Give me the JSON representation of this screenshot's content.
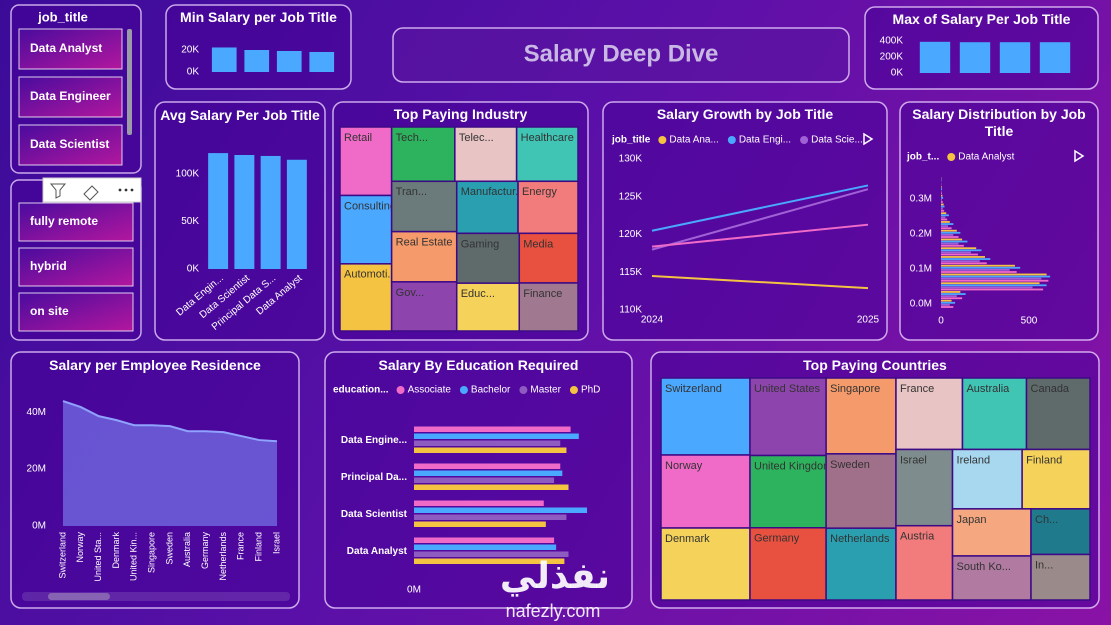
{
  "header": {
    "title": "Salary Deep Dive"
  },
  "slicers": [
    {
      "title": "job_title",
      "items": [
        "Data Analyst",
        "Data Engineer",
        "Data Scientist"
      ]
    },
    {
      "items": [
        "fully remote",
        "hybrid",
        "on site"
      ]
    }
  ],
  "watermark": {
    "arabic": "نفذلي",
    "latin": "nafezly.com"
  },
  "chart_data": [
    {
      "type": "bar",
      "title": "Min Salary per Job Title",
      "values": [
        22300,
        20000,
        19100,
        18200
      ],
      "color": "#4aa8ff",
      "ylim": [
        0,
        25000
      ],
      "yticks": [
        {
          "value": 0,
          "label": "0K"
        },
        {
          "value": 20000,
          "label": "20K"
        }
      ]
    },
    {
      "type": "bar",
      "title": "Max of Salary Per Job Title",
      "values": [
        390000,
        385000,
        385000,
        385000
      ],
      "color": "#4aa8ff",
      "ylim": [
        0,
        450000
      ],
      "yticks": [
        {
          "value": 0,
          "label": "0K"
        },
        {
          "value": 200000,
          "label": "200K"
        },
        {
          "value": 400000,
          "label": "400K"
        }
      ]
    },
    {
      "type": "bar",
      "title": "Avg Salary Per Job Title",
      "categories": [
        "Data Engin...",
        "Data Scientist",
        "Principal Data S...",
        "Data Analyst"
      ],
      "values": [
        122000,
        120000,
        119000,
        115000
      ],
      "color": "#4aa8ff",
      "ylim": [
        0,
        130000
      ],
      "yticks": [
        {
          "value": 0,
          "label": "0K"
        },
        {
          "value": 50000,
          "label": "50K"
        },
        {
          "value": 100000,
          "label": "100K"
        }
      ]
    },
    {
      "type": "treemap",
      "title": "Top Paying Industry",
      "categories": [
        "Retail",
        "Consulting",
        "Automoti...",
        "Tech...",
        "Telec...",
        "Healthcare",
        "Tran...",
        "Real Estate",
        "Gov...",
        "Manufactur...",
        "Energy",
        "Gaming",
        "Educ...",
        "Media",
        "Finance"
      ],
      "values": [
        3536,
        3530,
        3468,
        3432,
        3354,
        3332,
        3276,
        3268,
        3198,
        3192,
        3120,
        3116,
        2990,
        2914,
        2820
      ],
      "colors": [
        "#f06bc8",
        "#4aa8ff",
        "#f5c342",
        "#2db35d",
        "#e8c4c4",
        "#40c4b4",
        "#6b7a7a",
        "#f59a6a",
        "#8e44ad",
        "#2a9fb0",
        "#f27c7c",
        "#5f6a6a",
        "#f5d35a",
        "#e8503f",
        "#a07890"
      ]
    },
    {
      "type": "line",
      "title": "Salary Growth by Job Title",
      "legend_title": "job_title",
      "x": [
        2024,
        2025
      ],
      "xlim": [
        2024,
        2025
      ],
      "xticks": [
        2024,
        2025
      ],
      "ylim": [
        110000,
        130000
      ],
      "yticks": [
        {
          "value": 110000,
          "label": "110K"
        },
        {
          "value": 115000,
          "label": "115K"
        },
        {
          "value": 120000,
          "label": "120K"
        },
        {
          "value": 125000,
          "label": "125K"
        },
        {
          "value": 130000,
          "label": "130K"
        }
      ],
      "series": [
        {
          "name": "Data Ana...",
          "color": "#f5c342",
          "values": [
            114500,
            112900
          ]
        },
        {
          "name": "Data Engi...",
          "color": "#4aa8ff",
          "values": [
            120500,
            126500
          ]
        },
        {
          "name": "Data Scie...",
          "color": "#a061d6",
          "values": [
            118000,
            126000
          ]
        },
        {
          "name": null,
          "color": "#f06bc8",
          "values": [
            118400,
            121300
          ]
        }
      ]
    },
    {
      "type": "bar",
      "orientation": "horizontal",
      "title": "Salary Distribution by Job Title",
      "legend_title": "job_t...",
      "x": [
        0,
        25000,
        50000,
        75000,
        100000,
        125000,
        150000,
        175000,
        200000,
        225000,
        250000,
        275000,
        300000,
        325000,
        350000
      ],
      "xlim": [
        -12000,
        380000
      ],
      "xticks": [
        {
          "value": 0,
          "label": "0.0M"
        },
        {
          "value": 100000,
          "label": "0.1M"
        },
        {
          "value": 200000,
          "label": "0.2M"
        },
        {
          "value": 300000,
          "label": "0.3M"
        }
      ],
      "ylim": [
        0,
        800
      ],
      "yticks": [
        0,
        500
      ],
      "series": [
        {
          "name": "Data Analyst",
          "color": "#f5c342",
          "values": [
            60,
            110,
            560,
            600,
            420,
            250,
            200,
            120,
            90,
            50,
            30,
            15,
            8,
            4,
            2
          ]
        },
        {
          "name": null,
          "color": "#4aa8ff",
          "values": [
            80,
            140,
            600,
            620,
            450,
            280,
            230,
            150,
            110,
            70,
            45,
            20,
            12,
            6,
            3
          ]
        },
        {
          "name": null,
          "color": "#a061d6",
          "values": [
            50,
            90,
            520,
            570,
            390,
            220,
            170,
            100,
            70,
            40,
            25,
            10,
            5,
            3,
            1
          ]
        },
        {
          "name": null,
          "color": "#f06bc8",
          "values": [
            70,
            120,
            580,
            610,
            430,
            260,
            210,
            130,
            100,
            60,
            35,
            18,
            10,
            5,
            2
          ]
        }
      ]
    },
    {
      "type": "area",
      "title": "Salary per Employee Residence",
      "categories": [
        "Switzerland",
        "Norway",
        "United Sta...",
        "Denmark",
        "United Kin...",
        "Singapore",
        "Sweden",
        "Australia",
        "Germany",
        "Netherlands",
        "France",
        "Finland",
        "Israel"
      ],
      "values": [
        43900000,
        41800000,
        38600000,
        37200000,
        35400000,
        35400000,
        35100000,
        33300000,
        33300000,
        33000000,
        31600000,
        30200000,
        29800000
      ],
      "color": "#6f63dc",
      "ylim": [
        0,
        46000000
      ],
      "yticks": [
        {
          "value": 0,
          "label": "0M"
        },
        {
          "value": 20000000,
          "label": "20M"
        },
        {
          "value": 40000000,
          "label": "40M"
        }
      ]
    },
    {
      "type": "bar",
      "orientation": "horizontal",
      "title": "Salary By Education Required",
      "legend_title": "education...",
      "categories": [
        "Data Engine...",
        "Principal Da...",
        "Data Scientist",
        "Data Analyst"
      ],
      "ylim": [
        0,
        10000000
      ],
      "yticks": [
        {
          "value": 0,
          "label": "0M"
        }
      ],
      "series": [
        {
          "name": "Associate",
          "color": "#f06bc8",
          "values": [
            7600000,
            7100000,
            6300000,
            6800000
          ]
        },
        {
          "name": "Bachelor",
          "color": "#4aa8ff",
          "values": [
            8000000,
            7200000,
            8400000,
            6900000
          ]
        },
        {
          "name": "Master",
          "color": "#8e5bc0",
          "values": [
            7100000,
            6800000,
            7400000,
            7500000
          ]
        },
        {
          "name": "PhD",
          "color": "#f5c342",
          "values": [
            7400000,
            7500000,
            6400000,
            7300000
          ]
        }
      ]
    },
    {
      "type": "treemap",
      "title": "Top Paying Countries",
      "categories": [
        "Switzerland",
        "Norway",
        "Denmark",
        "United States",
        "United Kingdom",
        "Germany",
        "Singapore",
        "Sweden",
        "Netherlands",
        "France",
        "Australia",
        "Canada",
        "Israel",
        "Austria",
        "Ireland",
        "Finland",
        "Japan",
        "South Ko...",
        "Ch...",
        "In..."
      ],
      "values": [
        6853,
        6497,
        6408,
        5900,
        5500,
        5500,
        5300,
        5192,
        5016,
        4752,
        4576,
        4536,
        4312,
        4200,
        4136,
        4032,
        3696,
        3456,
        2688,
        2688
      ],
      "colors": [
        "#4aa8ff",
        "#f06bc8",
        "#f5d35a",
        "#8e44ad",
        "#2db35d",
        "#e8503f",
        "#f59a6a",
        "#a0708a",
        "#2a9fb0",
        "#e8c4c4",
        "#40c4b4",
        "#5f6a6a",
        "#7f8c8d",
        "#f27c7c",
        "#a8d8f0",
        "#f5d35a",
        "#f5a880",
        "#b07aa1",
        "#1f7a8c",
        "#9a8a8a"
      ]
    }
  ]
}
